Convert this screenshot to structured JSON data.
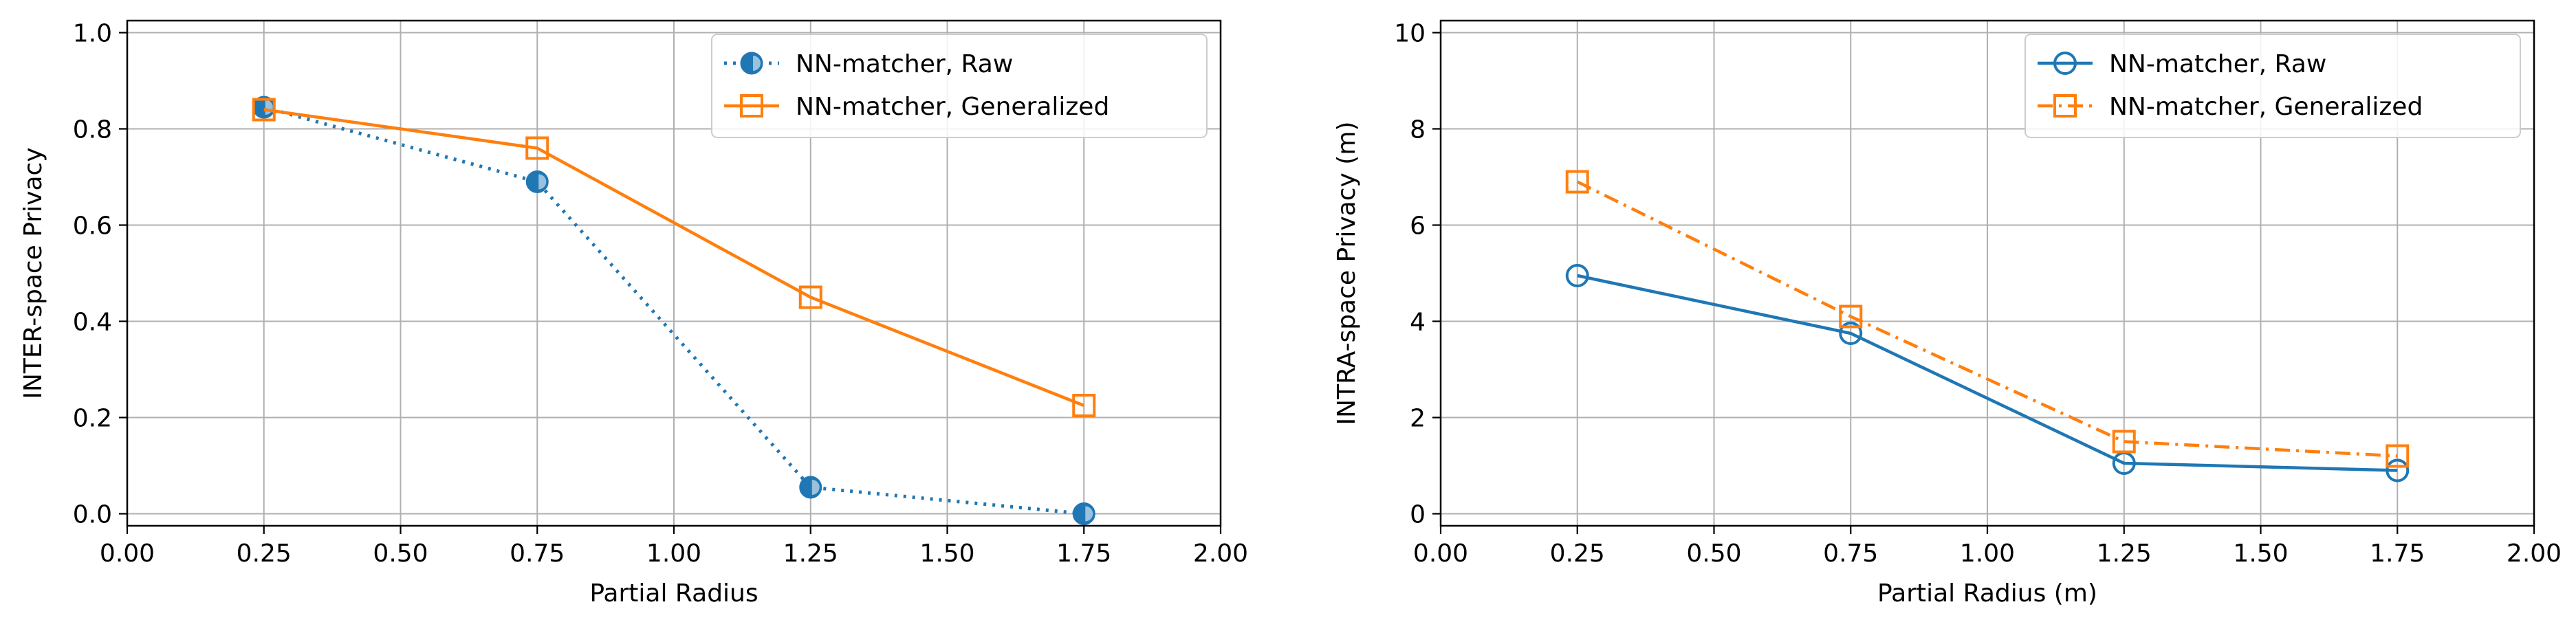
{
  "chart_data": [
    {
      "type": "line",
      "xlabel": "Partial Radius",
      "ylabel": "INTER-space Privacy",
      "xlim": [
        0.0,
        2.0
      ],
      "ylim": [
        -0.025,
        1.025
      ],
      "xticks": [
        "0.00",
        "0.25",
        "0.50",
        "0.75",
        "1.00",
        "1.25",
        "1.50",
        "1.75",
        "2.00"
      ],
      "yticks": [
        "0.0",
        "0.2",
        "0.4",
        "0.6",
        "0.8",
        "1.0"
      ],
      "grid": true,
      "legend_position": "top-right",
      "series": [
        {
          "name": "NN-matcher, Raw",
          "color": "#1f77b4",
          "linestyle": "dotted",
          "marker": "half-filled-circle",
          "x": [
            0.25,
            0.75,
            1.25,
            1.75
          ],
          "y": [
            0.845,
            0.69,
            0.055,
            0.0
          ]
        },
        {
          "name": "NN-matcher, Generalized",
          "color": "#ff7f0e",
          "linestyle": "solid",
          "marker": "square",
          "x": [
            0.25,
            0.75,
            1.25,
            1.75
          ],
          "y": [
            0.84,
            0.76,
            0.45,
            0.225
          ]
        }
      ]
    },
    {
      "type": "line",
      "xlabel": "Partial Radius (m)",
      "ylabel": "INTRA-space Privacy (m)",
      "xlim": [
        0.0,
        2.0
      ],
      "ylim": [
        -0.25,
        10.25
      ],
      "xticks": [
        "0.00",
        "0.25",
        "0.50",
        "0.75",
        "1.00",
        "1.25",
        "1.50",
        "1.75",
        "2.00"
      ],
      "yticks": [
        "0",
        "2",
        "4",
        "6",
        "8",
        "10"
      ],
      "grid": true,
      "legend_position": "top-right",
      "series": [
        {
          "name": "NN-matcher, Raw",
          "color": "#1f77b4",
          "linestyle": "solid",
          "marker": "circle",
          "x": [
            0.25,
            0.75,
            1.25,
            1.75
          ],
          "y": [
            4.95,
            3.75,
            1.05,
            0.9
          ]
        },
        {
          "name": "NN-matcher, Generalized",
          "color": "#ff7f0e",
          "linestyle": "dashdot",
          "marker": "square",
          "x": [
            0.25,
            0.75,
            1.25,
            1.75
          ],
          "y": [
            6.9,
            4.1,
            1.5,
            1.2
          ]
        }
      ]
    }
  ]
}
